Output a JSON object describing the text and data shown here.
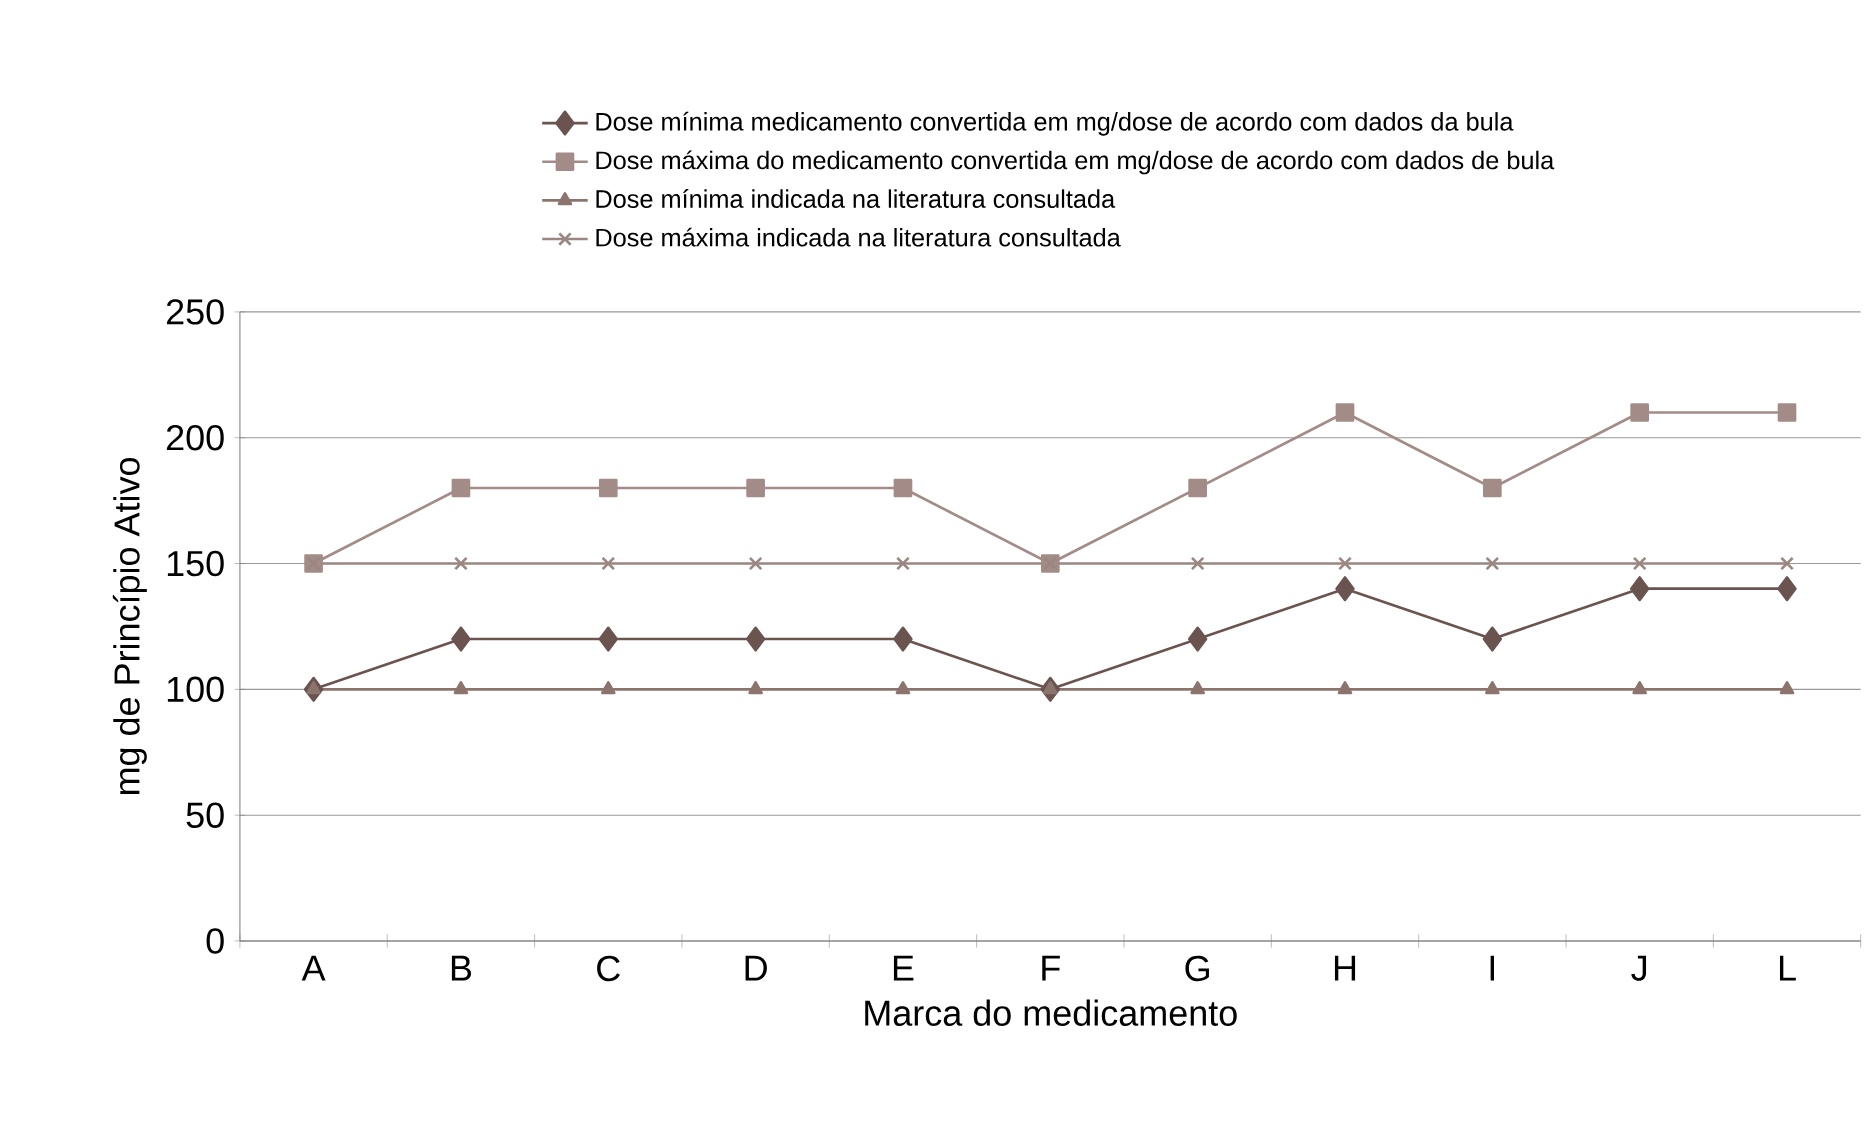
{
  "chart_data": {
    "type": "line",
    "xlabel": "Marca do medicamento",
    "ylabel": "mg de Princípio Ativo",
    "categories": [
      "A",
      "B",
      "C",
      "D",
      "E",
      "F",
      "G",
      "H",
      "I",
      "J",
      "L"
    ],
    "series": [
      {
        "name": "Dose mínima medicamento convertida em mg/dose de acordo com dados da bula",
        "color": "#6b5450",
        "marker": "diamond",
        "values": [
          100,
          120,
          120,
          120,
          120,
          100,
          120,
          140,
          120,
          140,
          140
        ]
      },
      {
        "name": "Dose máxima do medicamento convertida em mg/dose de acordo com dados de bula",
        "color": "#a38c87",
        "marker": "square",
        "values": [
          150,
          180,
          180,
          180,
          180,
          150,
          180,
          210,
          180,
          210,
          210
        ]
      },
      {
        "name": "Dose mínima indicada na literatura consultada",
        "color": "#8c746e",
        "marker": "triangle",
        "values": [
          100,
          100,
          100,
          100,
          100,
          100,
          100,
          100,
          100,
          100,
          100
        ]
      },
      {
        "name": "Dose máxima indicada na literatura consultada",
        "color": "#9a8682",
        "marker": "cross",
        "values": [
          150,
          150,
          150,
          150,
          150,
          150,
          150,
          150,
          150,
          150,
          150
        ]
      }
    ],
    "ylim": [
      0,
      250
    ],
    "yticks": [
      0,
      50,
      100,
      150,
      200,
      250
    ],
    "grid": "y",
    "legend": "top",
    "line_style": "solid"
  }
}
